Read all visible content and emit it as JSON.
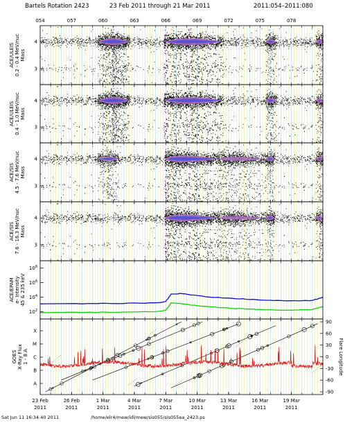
{
  "header": {
    "rotation": "Bartels Rotation 2423",
    "date_range": "23 Feb 2011 through 21 Mar 2011",
    "doy_range": "2011:054–2011:080"
  },
  "footer": {
    "timestamp": "Sat Jun 11 16:34:40 2011",
    "path": "/home/elr4/mew/idl/mew/sis055/sis055ea_2423.ps"
  },
  "colors": {
    "frame": "#000000",
    "grid": "#e8e8a8",
    "grid_alt": "#a8d8e8",
    "scatter": "#000000",
    "density_mid": "#b070c8",
    "density_high": "#5050d8",
    "electron": "#1010d0",
    "proton": "#10d010",
    "xray": "#e01010",
    "flare": "#000000"
  },
  "chart_data": {
    "type": "multi-panel",
    "x_axis": {
      "doy_ticks": [
        "054",
        "057",
        "060",
        "063",
        "066",
        "069",
        "072",
        "075",
        "078"
      ],
      "date_ticks": [
        {
          "label": "23 Feb",
          "year": "2011"
        },
        {
          "label": "26 Feb",
          "year": "2011"
        },
        {
          "label": "1 Mar",
          "year": "2011"
        },
        {
          "label": "4 Mar",
          "year": "2011"
        },
        {
          "label": "7 Mar",
          "year": "2011"
        },
        {
          "label": "10 Mar",
          "year": "2011"
        },
        {
          "label": "13 Mar",
          "year": "2011"
        },
        {
          "label": "16 Mar",
          "year": "2011"
        },
        {
          "label": "19 Mar",
          "year": "2011"
        }
      ],
      "day_range": [
        54,
        81
      ]
    },
    "panels": [
      {
        "id": "uleis1",
        "ylabel": [
          "ACE/ULEIS",
          "0.2 - 0.4 MeV/nuc",
          "Mass"
        ],
        "yticks": [
          "4",
          "3"
        ],
        "ylim": [
          2.4,
          4.6
        ],
        "type": "scatter-density",
        "enhancements": [
          {
            "start": 59.5,
            "end": 62.5,
            "peak": 61.0,
            "strength": 1.0
          },
          {
            "start": 65.8,
            "end": 71.5,
            "peak": 68.0,
            "strength": 1.0
          },
          {
            "start": 75.5,
            "end": 76.6,
            "peak": 76.0,
            "strength": 0.6
          },
          {
            "start": 80.3,
            "end": 81.0,
            "peak": 80.8,
            "strength": 0.6
          }
        ]
      },
      {
        "id": "uleis2",
        "ylabel": [
          "ACE/ULEIS",
          "0.4 - 1.0 MeV/nuc",
          "Mass"
        ],
        "yticks": [
          "4",
          "3"
        ],
        "ylim": [
          2.4,
          4.6
        ],
        "type": "scatter-density",
        "enhancements": [
          {
            "start": 59.5,
            "end": 62.5,
            "peak": 61.0,
            "strength": 1.0
          },
          {
            "start": 65.8,
            "end": 71.5,
            "peak": 68.0,
            "strength": 1.0
          },
          {
            "start": 75.5,
            "end": 76.6,
            "peak": 76.0,
            "strength": 0.6
          },
          {
            "start": 80.3,
            "end": 81.0,
            "peak": 80.8,
            "strength": 0.6
          }
        ]
      },
      {
        "id": "sis1",
        "ylabel": [
          "ACE/SIS",
          "4.5 - 7.6 MeV/nuc",
          "Mass"
        ],
        "yticks": [
          "4",
          "3"
        ],
        "ylim": [
          2.4,
          4.6
        ],
        "type": "scatter-density",
        "enhancements": [
          {
            "start": 59.5,
            "end": 61.5,
            "peak": 60.5,
            "strength": 0.55
          },
          {
            "start": 65.9,
            "end": 71.0,
            "peak": 66.8,
            "strength": 1.0
          },
          {
            "start": 71.0,
            "end": 75.5,
            "peak": 72.0,
            "strength": 0.45
          },
          {
            "start": 75.5,
            "end": 76.4,
            "peak": 76.0,
            "strength": 0.6
          },
          {
            "start": 80.3,
            "end": 81.0,
            "peak": 80.8,
            "strength": 0.6
          }
        ]
      },
      {
        "id": "sis2",
        "ylabel": [
          "ACE/SIS",
          "7.6 - 16.3 MeV/nuc",
          "Mass"
        ],
        "yticks": [
          "4",
          "3"
        ],
        "ylim": [
          2.4,
          4.6
        ],
        "type": "scatter-density",
        "enhancements": [
          {
            "start": 65.9,
            "end": 71.0,
            "peak": 66.8,
            "strength": 1.0
          },
          {
            "start": 71.0,
            "end": 75.5,
            "peak": 72.0,
            "strength": 0.4
          },
          {
            "start": 75.5,
            "end": 76.4,
            "peak": 76.0,
            "strength": 0.6
          },
          {
            "start": 80.3,
            "end": 81.0,
            "peak": 80.8,
            "strength": 0.6
          }
        ]
      },
      {
        "id": "epam",
        "ylabel": [
          "ACE/EPAM",
          "e- Intensity",
          "45 & 235 keV"
        ],
        "ytick_exponents": [
          "8",
          "6",
          "4",
          "2"
        ],
        "ylim_log": [
          1,
          9
        ],
        "type": "line",
        "series": [
          {
            "name": "45 keV",
            "points": [
              [
                54,
                3.1
              ],
              [
                58,
                3.1
              ],
              [
                62,
                3.15
              ],
              [
                65,
                3.2
              ],
              [
                66,
                3.4
              ],
              [
                66.5,
                4.4
              ],
              [
                67.5,
                4.5
              ],
              [
                68.5,
                4.3
              ],
              [
                70,
                4.05
              ],
              [
                72,
                3.85
              ],
              [
                74,
                3.7
              ],
              [
                76,
                3.55
              ],
              [
                78,
                3.5
              ],
              [
                80,
                3.55
              ],
              [
                80.8,
                3.9
              ],
              [
                81,
                4.0
              ]
            ]
          },
          {
            "name": "235 keV",
            "points": [
              [
                54,
                1.9
              ],
              [
                58,
                1.9
              ],
              [
                62,
                1.95
              ],
              [
                65,
                2.0
              ],
              [
                66,
                2.2
              ],
              [
                66.5,
                3.2
              ],
              [
                67.5,
                3.1
              ],
              [
                68.5,
                2.9
              ],
              [
                70,
                2.7
              ],
              [
                72,
                2.5
              ],
              [
                74,
                2.35
              ],
              [
                76,
                2.25
              ],
              [
                78,
                2.2
              ],
              [
                80,
                2.3
              ],
              [
                80.8,
                2.65
              ],
              [
                81,
                2.7
              ]
            ]
          }
        ]
      },
      {
        "id": "goes",
        "ylabel": [
          "GOES",
          "X-Ray Flux",
          "1 - 8 A"
        ],
        "left_ticks": [
          "X",
          "M",
          "C",
          "B",
          "A"
        ],
        "right_ticks": [
          "90",
          "60",
          "30",
          "0",
          "-30",
          "-60",
          "-90"
        ],
        "right_label": "Flare Longitude",
        "right_lim": [
          -90,
          90
        ],
        "type": "flux-and-flares",
        "xray_baseline_class": "C low",
        "flare_tracks": [
          {
            "start_day": 54.5,
            "start_lon": -90,
            "end_day": 67.5,
            "end_lon": 90
          },
          {
            "start_day": 56.0,
            "start_lon": -60,
            "end_day": 69.5,
            "end_lon": 90
          },
          {
            "start_day": 59.0,
            "start_lon": -60,
            "end_day": 73.0,
            "end_lon": 85
          },
          {
            "start_day": 63.0,
            "start_lon": -75,
            "end_day": 76.5,
            "end_lon": 80
          },
          {
            "start_day": 66.5,
            "start_lon": -80,
            "end_day": 80.5,
            "end_lon": 85
          }
        ]
      }
    ]
  }
}
